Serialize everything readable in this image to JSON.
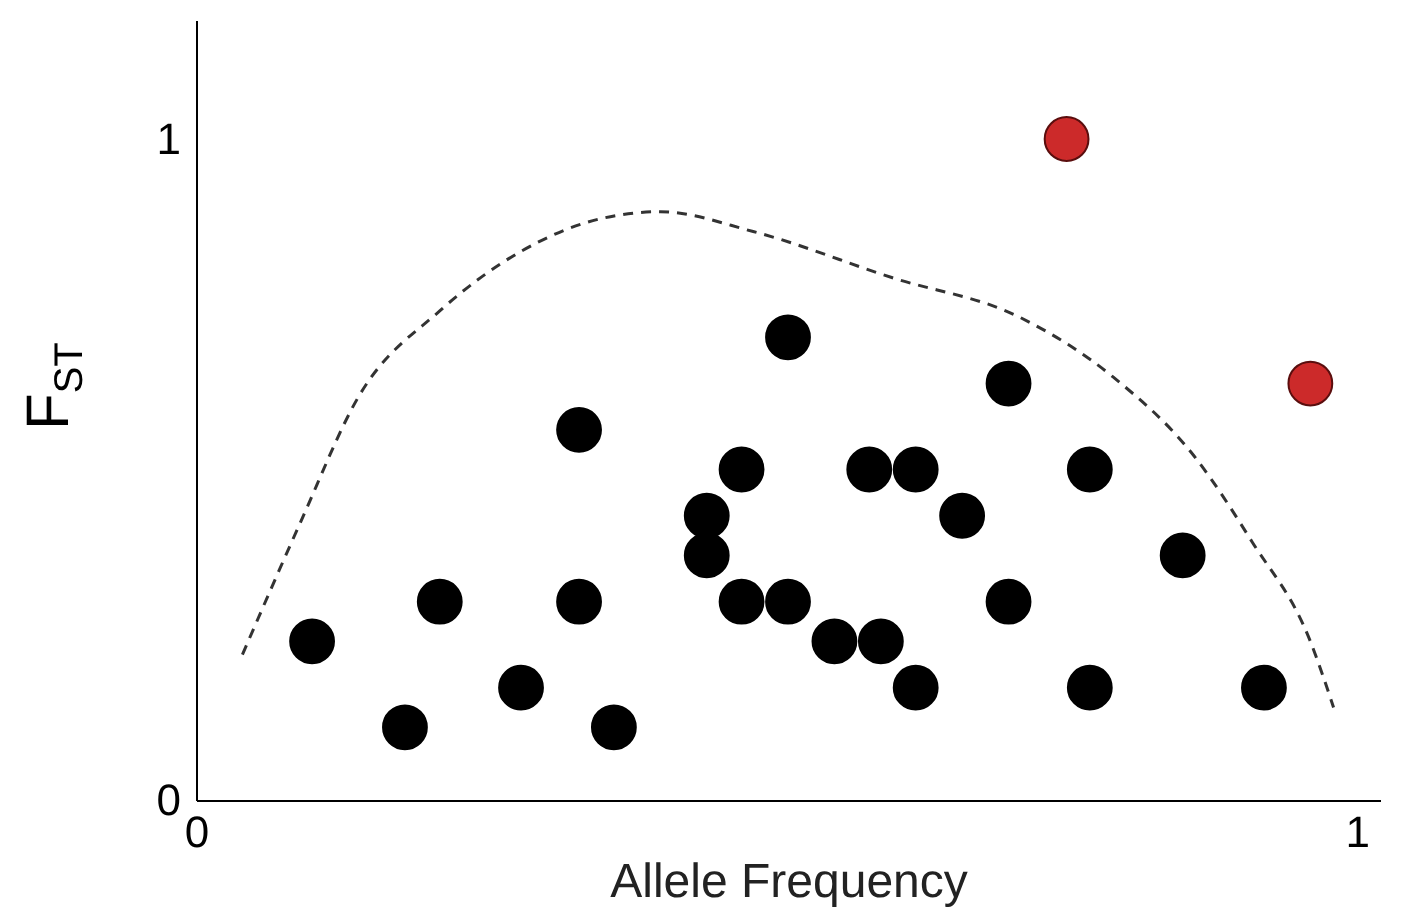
{
  "chart_data": {
    "type": "scatter",
    "xlabel": "Allele Frequency",
    "ylabel": "F$_{ST}$",
    "xlim": [
      0,
      1.02
    ],
    "ylim": [
      0,
      1.18
    ],
    "xticks": [
      0,
      1
    ],
    "yticks": [
      0,
      1
    ],
    "grid": false,
    "marker": "circle",
    "series": [
      {
        "color": "#000000",
        "x": [
          0.1,
          0.18,
          0.21,
          0.28,
          0.33,
          0.33,
          0.36,
          0.44,
          0.44,
          0.47,
          0.47,
          0.51,
          0.51,
          0.55,
          0.59,
          0.58,
          0.62,
          0.62,
          0.66,
          0.7,
          0.7,
          0.77,
          0.77,
          0.85,
          0.92
        ],
        "values": [
          0.24,
          0.11,
          0.3,
          0.17,
          0.56,
          0.3,
          0.11,
          0.43,
          0.37,
          0.5,
          0.3,
          0.7,
          0.3,
          0.24,
          0.24,
          0.5,
          0.5,
          0.17,
          0.43,
          0.63,
          0.3,
          0.5,
          0.17,
          0.37,
          0.17
        ]
      },
      {
        "color": "#cc2a2a",
        "x": [
          0.75,
          0.96
        ],
        "values": [
          1.0,
          0.63
        ]
      },
      {
        "type": "line",
        "marker": "none",
        "color": "#333333",
        "line_style": "dashed",
        "x": [
          0.04,
          0.09,
          0.14,
          0.21,
          0.28,
          0.35,
          0.4,
          0.48,
          0.6,
          0.71,
          0.79,
          0.86,
          0.91,
          0.96,
          0.98
        ],
        "values": [
          0.22,
          0.42,
          0.61,
          0.74,
          0.83,
          0.88,
          0.89,
          0.86,
          0.79,
          0.73,
          0.64,
          0.52,
          0.39,
          0.24,
          0.14
        ]
      }
    ]
  }
}
